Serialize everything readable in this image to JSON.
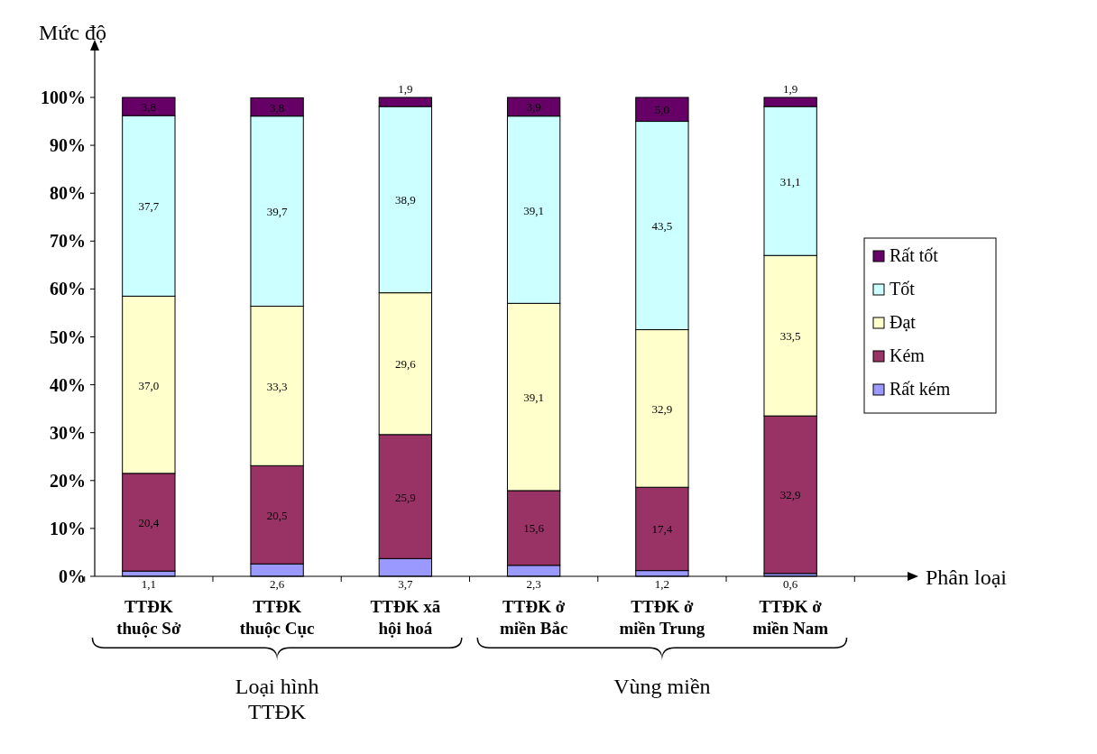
{
  "chart_data": {
    "type": "bar",
    "stacked": true,
    "ylabel": "Mức độ",
    "xlabel": "Phân loại",
    "categories": [
      "TTĐK\nthuộc Sở",
      "TTĐK\nthuộc Cục",
      "TTĐK xã\nhội hoá",
      "TTĐK ở\nmiền Bắc",
      "TTĐK ở\nmiền Trung",
      "TTĐK ở\nmiền Nam"
    ],
    "series": [
      {
        "name": "Rất kém",
        "color": "#9999ff",
        "values": [
          1.1,
          2.6,
          3.7,
          2.3,
          1.2,
          0.6
        ],
        "value_labels": [
          "1,1",
          "2,6",
          "3,7",
          "2,3",
          "1,2",
          "0,6"
        ]
      },
      {
        "name": "Kém",
        "color": "#993366",
        "values": [
          20.4,
          20.5,
          25.9,
          15.6,
          17.4,
          32.9
        ],
        "value_labels": [
          "20,4",
          "20,5",
          "25,9",
          "15,6",
          "17,4",
          "32,9"
        ]
      },
      {
        "name": "Đạt",
        "color": "#ffffcc",
        "values": [
          37.0,
          33.3,
          29.6,
          39.1,
          32.9,
          33.5
        ],
        "value_labels": [
          "37,0",
          "33,3",
          "29,6",
          "39,1",
          "32,9",
          "33,5"
        ]
      },
      {
        "name": "Tốt",
        "color": "#ccffff",
        "values": [
          37.7,
          39.7,
          38.9,
          39.1,
          43.5,
          31.1
        ],
        "value_labels": [
          "37,7",
          "39,7",
          "38,9",
          "39,1",
          "43,5",
          "31,1"
        ]
      },
      {
        "name": "Rất tốt",
        "color": "#660066",
        "values": [
          3.8,
          3.8,
          1.9,
          3.9,
          5.0,
          1.9
        ],
        "value_labels": [
          "3,8",
          "3,8",
          "1,9",
          "3,9",
          "5,0",
          "1,9"
        ]
      }
    ],
    "ylim": [
      0,
      100
    ],
    "yticks": [
      {
        "value": 0,
        "label": "0%"
      },
      {
        "value": 10,
        "label": "10%"
      },
      {
        "value": 20,
        "label": "20%"
      },
      {
        "value": 30,
        "label": "30%"
      },
      {
        "value": 40,
        "label": "40%"
      },
      {
        "value": 50,
        "label": "50%"
      },
      {
        "value": 60,
        "label": "60%"
      },
      {
        "value": 70,
        "label": "70%"
      },
      {
        "value": 80,
        "label": "80%"
      },
      {
        "value": 90,
        "label": "90%"
      },
      {
        "value": 100,
        "label": "100%"
      }
    ],
    "annotations": [
      "Loại hình TTĐK",
      "Vùng miền"
    ],
    "legend": "right"
  }
}
